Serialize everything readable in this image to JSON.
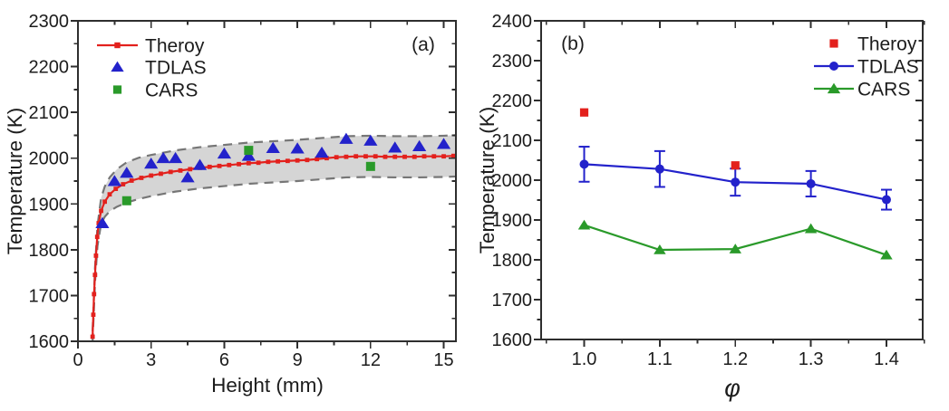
{
  "figure": {
    "background": "#ffffff",
    "text_color": "#1c1c1c",
    "axis_color": "#2e2e2e"
  },
  "chart_data": [
    {
      "id": "a",
      "type": "line",
      "panel_label": "(a)",
      "xlabel": "Height (mm)",
      "ylabel": "Temperature (K)",
      "xlim": [
        0,
        15.5
      ],
      "ylim": [
        1600,
        2300
      ],
      "x_major_ticks": [
        0,
        3,
        6,
        9,
        12,
        15
      ],
      "x_major_labels": [
        "0",
        "3",
        "6",
        "9",
        "12",
        "15"
      ],
      "x_minor_ticks": [
        1.5,
        4.5,
        7.5,
        10.5,
        13.5
      ],
      "y_major_ticks": [
        1600,
        1700,
        1800,
        1900,
        2000,
        2100,
        2200,
        2300
      ],
      "y_minor_ticks": [
        1650,
        1750,
        1850,
        1950,
        2050,
        2150,
        2250
      ],
      "grid": false,
      "legend": {
        "position": "top-left",
        "entries": [
          {
            "label": "Theroy",
            "marker": "line-square",
            "color": "#e3211d"
          },
          {
            "label": "TDLAS",
            "marker": "triangle",
            "color": "#2322cb"
          },
          {
            "label": "CARS",
            "marker": "square",
            "color": "#2a9a2a"
          }
        ]
      },
      "band": {
        "name": "uncertainty-band",
        "fill": "#d5d5d5",
        "edge_color": "#767676",
        "edge_style": "dashed",
        "x": [
          0.6,
          0.7,
          0.8,
          0.95,
          1.1,
          1.3,
          1.6,
          2.0,
          2.5,
          3.0,
          4.0,
          5.0,
          6.0,
          7.0,
          8.0,
          9.0,
          10.0,
          11.0,
          12.0,
          13.0,
          14.0,
          15.0,
          15.5
        ],
        "upper": [
          1622,
          1761,
          1852,
          1913,
          1938,
          1958,
          1976,
          1991,
          2001,
          2007,
          2017,
          2024,
          2029,
          2034,
          2037,
          2040,
          2044,
          2048,
          2049,
          2048,
          2048,
          2049,
          2050
        ],
        "lower": [
          1598,
          1729,
          1808,
          1857,
          1872,
          1884,
          1894,
          1903,
          1911,
          1917,
          1927,
          1934,
          1939,
          1944,
          1947,
          1950,
          1954,
          1958,
          1959,
          1958,
          1958,
          1959,
          1960
        ]
      },
      "series": [
        {
          "name": "Theroy",
          "plot": "line+marker",
          "marker": "square",
          "color": "#e3211d",
          "x": [
            0.6,
            0.63,
            0.66,
            0.7,
            0.74,
            0.79,
            0.85,
            0.95,
            1.1,
            1.3,
            1.55,
            1.85,
            2.2,
            2.6,
            3.0,
            3.4,
            3.8,
            4.2,
            4.6,
            5.0,
            5.4,
            5.8,
            6.2,
            6.6,
            7.0,
            7.4,
            7.8,
            8.2,
            8.6,
            9.0,
            9.4,
            9.8,
            10.2,
            10.6,
            11.0,
            11.4,
            11.8,
            12.2,
            12.6,
            13.0,
            13.4,
            13.8,
            14.2,
            14.6,
            15.0,
            15.4
          ],
          "y": [
            1610,
            1658,
            1703,
            1745,
            1787,
            1828,
            1858,
            1885,
            1905,
            1921,
            1933,
            1943,
            1951,
            1957,
            1962,
            1966,
            1970,
            1973,
            1976,
            1979,
            1981,
            1983,
            1985,
            1987,
            1989,
            1990,
            1992,
            1993,
            1994,
            1995,
            1996,
            1998,
            2000,
            2002,
            2003,
            2004,
            2004,
            2004,
            2003,
            2003,
            2003,
            2003,
            2004,
            2004,
            2004,
            2005
          ]
        },
        {
          "name": "TDLAS",
          "plot": "marker",
          "marker": "triangle",
          "color": "#2322cb",
          "x": [
            1.0,
            1.5,
            2.0,
            3.0,
            3.5,
            4.0,
            4.5,
            5.0,
            6.0,
            7.0,
            8.0,
            9.0,
            10.0,
            11.0,
            12.0,
            13.0,
            14.0,
            15.0
          ],
          "y": [
            1858,
            1950,
            1968,
            1988,
            2000,
            2000,
            1958,
            1985,
            2010,
            2005,
            2022,
            2021,
            2012,
            2042,
            2038,
            2023,
            2026,
            2031
          ]
        },
        {
          "name": "CARS",
          "plot": "marker",
          "marker": "square",
          "color": "#2a9a2a",
          "x": [
            2.0,
            7.0,
            12.0
          ],
          "y": [
            1907,
            2017,
            1982
          ]
        }
      ]
    },
    {
      "id": "b",
      "type": "line",
      "panel_label": "(b)",
      "xlabel": "φ",
      "ylabel": "Temperature (K)",
      "xlim": [
        0.943,
        1.448
      ],
      "ylim": [
        1600,
        2400
      ],
      "x_major_ticks": [
        1.0,
        1.1,
        1.2,
        1.3,
        1.4
      ],
      "x_major_labels": [
        "1.0",
        "1.1",
        "1.2",
        "1.3",
        "1.4"
      ],
      "x_minor_ticks": [
        0.95,
        1.05,
        1.15,
        1.25,
        1.35,
        1.45
      ],
      "y_major_ticks": [
        1600,
        1700,
        1800,
        1900,
        2000,
        2100,
        2200,
        2300,
        2400
      ],
      "y_minor_ticks": [
        1650,
        1750,
        1850,
        1950,
        2050,
        2150,
        2250,
        2350
      ],
      "grid": false,
      "legend": {
        "position": "top-right",
        "entries": [
          {
            "label": "Theroy",
            "marker": "square",
            "color": "#e3211d"
          },
          {
            "label": "TDLAS",
            "marker": "line-circle",
            "color": "#2322cb"
          },
          {
            "label": "CARS",
            "marker": "line-triangle",
            "color": "#2a9a2a"
          }
        ]
      },
      "series": [
        {
          "name": "TDLAS",
          "plot": "line+marker",
          "marker": "circle",
          "color": "#2322cb",
          "x": [
            1.0,
            1.1,
            1.2,
            1.3,
            1.4
          ],
          "y": [
            2040,
            2028,
            1995,
            1991,
            1951
          ],
          "yerr": [
            44,
            45,
            34,
            32,
            25
          ]
        },
        {
          "name": "CARS",
          "plot": "line+marker",
          "marker": "triangle",
          "color": "#2a9a2a",
          "x": [
            1.0,
            1.1,
            1.2,
            1.3,
            1.4
          ],
          "y": [
            1887,
            1825,
            1827,
            1878,
            1812
          ]
        },
        {
          "name": "Theroy",
          "plot": "marker",
          "marker": "square",
          "color": "#e3211d",
          "x": [
            1.0,
            1.2
          ],
          "y": [
            2170,
            2037
          ]
        }
      ]
    }
  ]
}
